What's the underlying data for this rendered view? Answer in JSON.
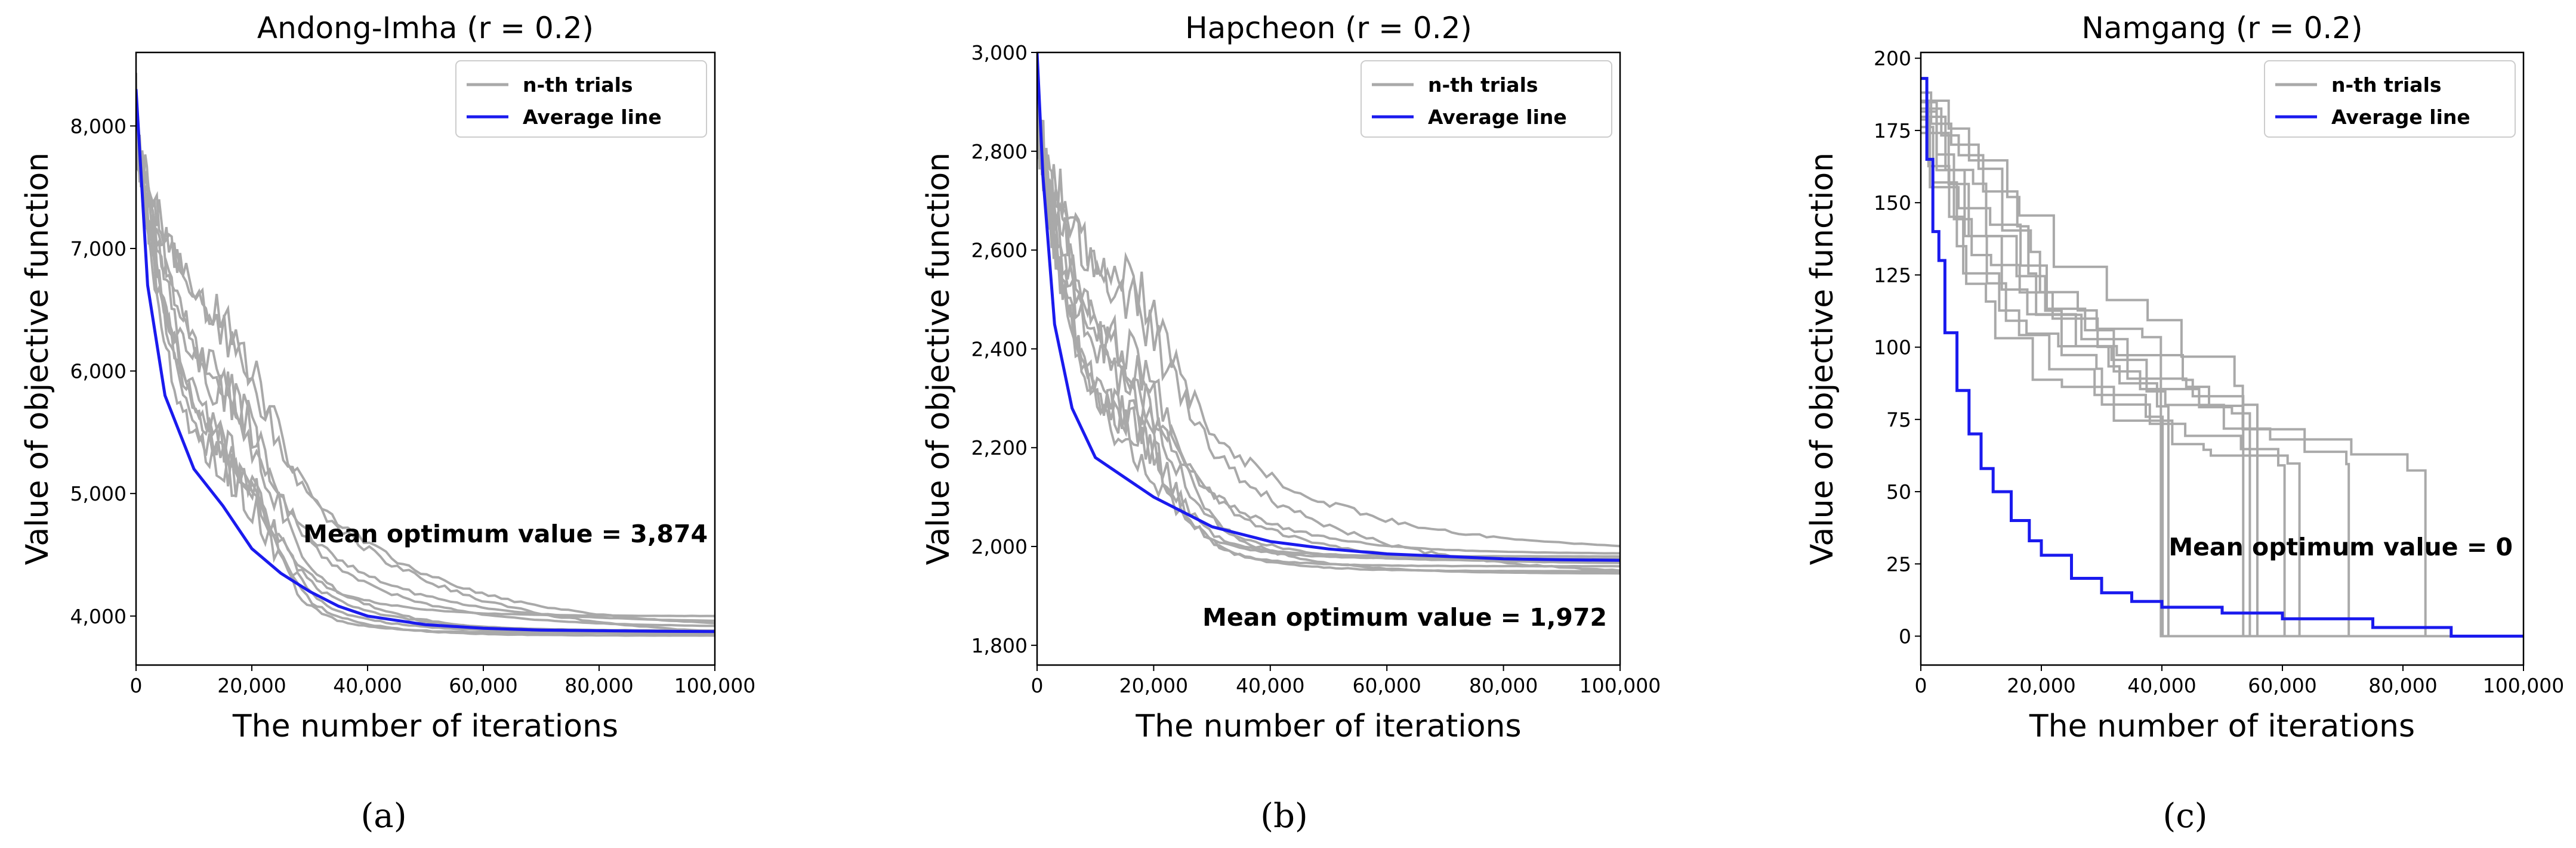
{
  "colors": {
    "trials": "#a9a9a9",
    "average": "#1a1aee"
  },
  "chart_data": [
    {
      "type": "line",
      "title": "Andong-Imha (r = 0.2)",
      "xlabel": "The number of iterations",
      "ylabel": "Value of objective function",
      "xlim": [
        0,
        100000
      ],
      "ylim": [
        3600,
        8600
      ],
      "xticks": [
        0,
        20000,
        40000,
        60000,
        80000,
        100000
      ],
      "xtick_labels": [
        "0",
        "20,000",
        "40,000",
        "60,000",
        "80,000",
        "100,000"
      ],
      "yticks": [
        4000,
        5000,
        6000,
        7000,
        8000
      ],
      "ytick_labels": [
        "4,000",
        "5,000",
        "6,000",
        "7,000",
        "8,000"
      ],
      "legend": [
        "n-th trials",
        "Average line"
      ],
      "legend_position": "top-right",
      "annotation": "Mean optimum value = 3,874",
      "caption": "(a)",
      "step": false,
      "start": 8300,
      "final": 3874,
      "x": [
        0,
        2000,
        5000,
        10000,
        15000,
        20000,
        25000,
        30000,
        35000,
        40000,
        50000,
        60000,
        70000,
        80000,
        90000,
        100000
      ],
      "series": [
        {
          "name": "Average line",
          "values": [
            8300,
            6700,
            5800,
            5200,
            4900,
            4550,
            4350,
            4200,
            4080,
            4000,
            3930,
            3900,
            3885,
            3880,
            3876,
            3874
          ]
        }
      ],
      "trial_finals": [
        4000,
        3950,
        3910,
        3890,
        3880,
        3870,
        3860,
        3850,
        3840,
        3820
      ]
    },
    {
      "type": "line",
      "title": "Hapcheon (r = 0.2)",
      "xlabel": "The number of iterations",
      "ylabel": "Value of objective function",
      "xlim": [
        0,
        100000
      ],
      "ylim": [
        1760,
        3000
      ],
      "xticks": [
        0,
        20000,
        40000,
        60000,
        80000,
        100000
      ],
      "xtick_labels": [
        "0",
        "20,000",
        "40,000",
        "60,000",
        "80,000",
        "100,000"
      ],
      "yticks": [
        1800,
        2000,
        2200,
        2400,
        2600,
        2800,
        3000
      ],
      "ytick_labels": [
        "1,800",
        "2,000",
        "2,200",
        "2,400",
        "2,600",
        "2,800",
        "3,000"
      ],
      "legend": [
        "n-th trials",
        "Average line"
      ],
      "legend_position": "top-right",
      "annotation": "Mean optimum value = 1,972",
      "caption": "(b)",
      "step": false,
      "start": 3000,
      "final": 1972,
      "x": [
        0,
        1000,
        3000,
        6000,
        10000,
        15000,
        20000,
        25000,
        30000,
        40000,
        50000,
        60000,
        70000,
        80000,
        90000,
        100000
      ],
      "series": [
        {
          "name": "Average line",
          "values": [
            3000,
            2750,
            2450,
            2280,
            2180,
            2140,
            2100,
            2070,
            2040,
            2010,
            1995,
            1985,
            1980,
            1975,
            1973,
            1972
          ]
        }
      ],
      "trial_finals": [
        1990,
        1985,
        1980,
        1975,
        1970,
        1965,
        1960,
        1950,
        1945,
        1940
      ]
    },
    {
      "type": "line",
      "title": "Namgang (r = 0.2)",
      "xlabel": "The number of iterations",
      "ylabel": "Value of objective function",
      "xlim": [
        0,
        100000
      ],
      "ylim": [
        -10,
        202
      ],
      "xticks": [
        0,
        20000,
        40000,
        60000,
        80000,
        100000
      ],
      "xtick_labels": [
        "0",
        "20,000",
        "40,000",
        "60,000",
        "80,000",
        "100,000"
      ],
      "yticks": [
        0,
        25,
        50,
        75,
        100,
        125,
        150,
        175,
        200
      ],
      "ytick_labels": [
        "0",
        "25",
        "50",
        "75",
        "100",
        "125",
        "150",
        "175",
        "200"
      ],
      "legend": [
        "n-th trials",
        "Average line"
      ],
      "legend_position": "top-right",
      "annotation": "Mean optimum value = 0",
      "caption": "(c)",
      "step": true,
      "start": 193,
      "final": 0,
      "x": [
        0,
        1000,
        2000,
        3000,
        4000,
        6000,
        8000,
        10000,
        12000,
        15000,
        18000,
        20000,
        25000,
        30000,
        35000,
        40000,
        50000,
        60000,
        75000,
        88000,
        100000
      ],
      "series": [
        {
          "name": "Average line",
          "values": [
            193,
            165,
            140,
            130,
            105,
            85,
            70,
            58,
            50,
            40,
            33,
            28,
            20,
            15,
            12,
            10,
            8,
            6,
            3,
            0,
            0
          ]
        }
      ],
      "trial_finals": [
        0,
        0,
        0,
        0,
        0,
        0,
        0,
        0,
        0,
        0
      ]
    }
  ]
}
